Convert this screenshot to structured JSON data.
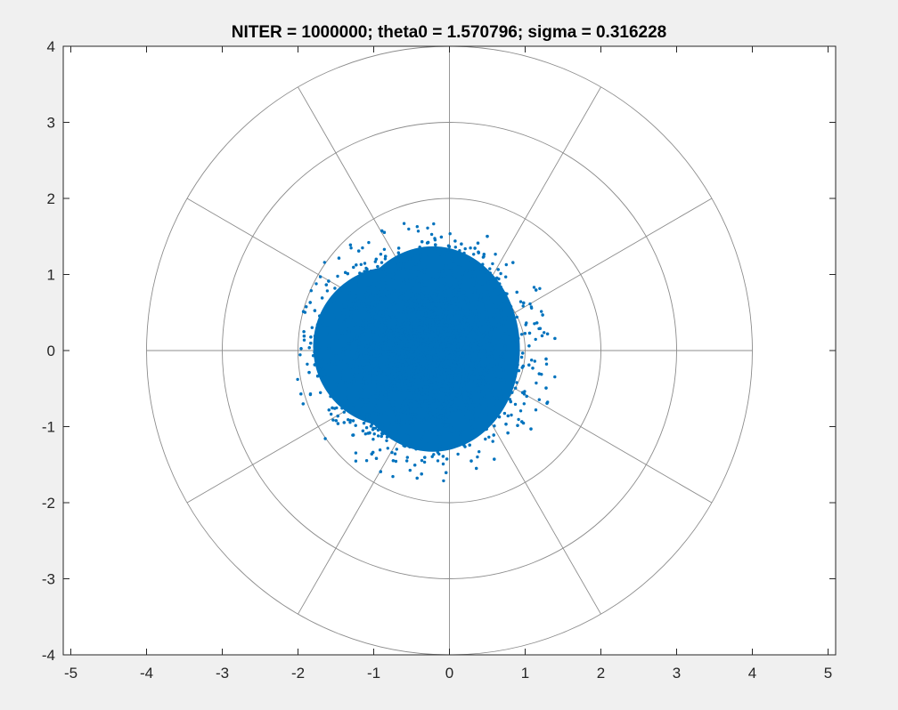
{
  "chart_data": {
    "type": "scatter",
    "title": "NITER = 1000000; theta0 = 1.570796; sigma = 0.316228",
    "xlabel": "",
    "ylabel": "",
    "xlim": [
      -5.1,
      5.1
    ],
    "ylim": [
      -4,
      4
    ],
    "x_ticks": [
      -5,
      -4,
      -3,
      -2,
      -1,
      0,
      1,
      2,
      3,
      4,
      5
    ],
    "y_ticks": [
      -4,
      -3,
      -2,
      -1,
      0,
      1,
      2,
      3,
      4
    ],
    "x_tick_labels": [
      "-5",
      "-4",
      "-3",
      "-2",
      "-1",
      "0",
      "1",
      "2",
      "3",
      "4",
      "5"
    ],
    "y_tick_labels": [
      "-4",
      "-3",
      "-2",
      "-1",
      "0",
      "1",
      "2",
      "3",
      "4"
    ],
    "grid": false,
    "legend": "none",
    "polar_overlay": {
      "circle_radii": [
        1,
        2,
        3,
        4
      ],
      "spoke_angles_deg": [
        0,
        30,
        60,
        90,
        120,
        150,
        180,
        210,
        240,
        270,
        300,
        330
      ],
      "spoke_radius": 4
    },
    "series": [
      {
        "marker_color": "#0072BD",
        "cloud": {
          "points_drawn_approx": 1000000,
          "center": [
            -0.25,
            0.0
          ],
          "x_extent": [
            -2.7,
            1.45
          ],
          "y_extent": [
            -1.85,
            2.3
          ]
        }
      }
    ]
  },
  "colors": {
    "figure_background": "#f0f0f0",
    "axes_background": "#ffffff",
    "axes_edge": "#262626",
    "polar_grid": "#8c8c8c",
    "points": "#0072BD"
  }
}
